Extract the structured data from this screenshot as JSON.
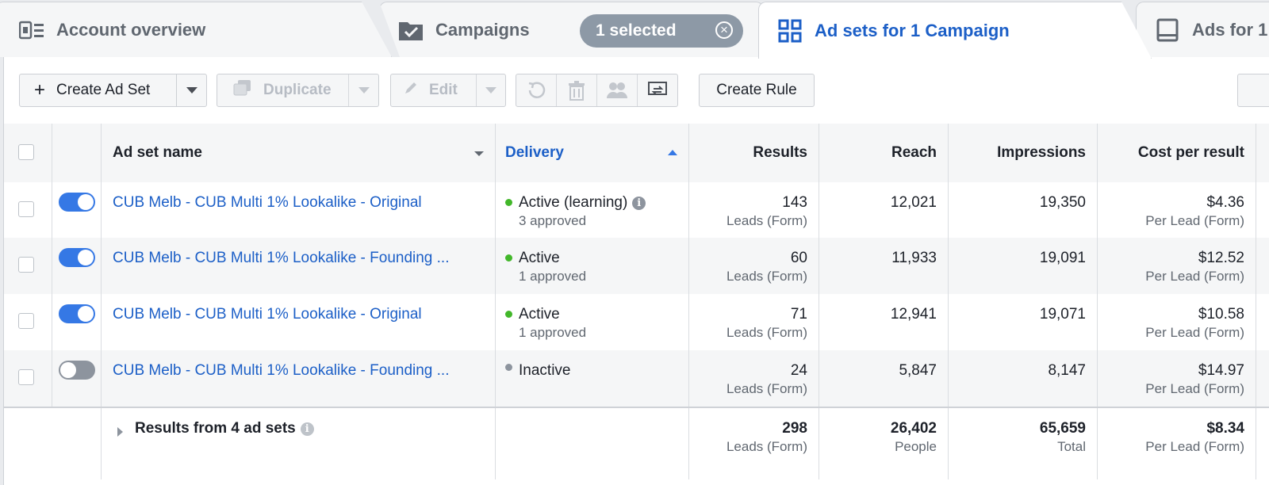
{
  "tabs": {
    "account": "Account overview",
    "campaigns": "Campaigns",
    "selected_pill": "1 selected",
    "adsets": "Ad sets for 1 Campaign",
    "ads": "Ads for 1"
  },
  "toolbar": {
    "create": "Create Ad Set",
    "duplicate": "Duplicate",
    "edit": "Edit",
    "create_rule": "Create Rule"
  },
  "table": {
    "headers": {
      "name": "Ad set name",
      "delivery": "Delivery",
      "results": "Results",
      "reach": "Reach",
      "impressions": "Impressions",
      "cost": "Cost per result"
    },
    "rows": [
      {
        "name": "CUB Melb - CUB Multi 1% Lookalike - Original",
        "enabled": true,
        "status": "Active (learning)",
        "status_color": "#42b72a",
        "approval": "3 approved",
        "results": "143",
        "results_unit": "Leads (Form)",
        "reach": "12,021",
        "impressions": "19,350",
        "cost": "$4.36",
        "cost_unit": "Per Lead (Form)"
      },
      {
        "name": "CUB Melb - CUB Multi 1% Lookalike - Founding ...",
        "enabled": true,
        "status": "Active",
        "status_color": "#42b72a",
        "approval": "1 approved",
        "results": "60",
        "results_unit": "Leads (Form)",
        "reach": "11,933",
        "impressions": "19,091",
        "cost": "$12.52",
        "cost_unit": "Per Lead (Form)"
      },
      {
        "name": "CUB Melb - CUB Multi 1% Lookalike - Original",
        "enabled": true,
        "status": "Active",
        "status_color": "#42b72a",
        "approval": "1 approved",
        "results": "71",
        "results_unit": "Leads (Form)",
        "reach": "12,941",
        "impressions": "19,071",
        "cost": "$10.58",
        "cost_unit": "Per Lead (Form)"
      },
      {
        "name": "CUB Melb - CUB Multi 1% Lookalike - Founding ...",
        "enabled": false,
        "status": "Inactive",
        "status_color": "#8d949e",
        "approval": "",
        "results": "24",
        "results_unit": "Leads (Form)",
        "reach": "5,847",
        "impressions": "8,147",
        "cost": "$14.97",
        "cost_unit": "Per Lead (Form)"
      }
    ],
    "totals": {
      "label": "Results from 4 ad sets",
      "results": "298",
      "results_unit": "Leads (Form)",
      "reach": "26,402",
      "reach_unit": "People",
      "impressions": "65,659",
      "impressions_unit": "Total",
      "cost": "$8.34",
      "cost_unit": "Per Lead (Form)"
    }
  },
  "colors": {
    "accent": "#1c5fc7",
    "toggle_on": "#3578e5",
    "active_dot": "#42b72a",
    "inactive_dot": "#8d949e"
  }
}
